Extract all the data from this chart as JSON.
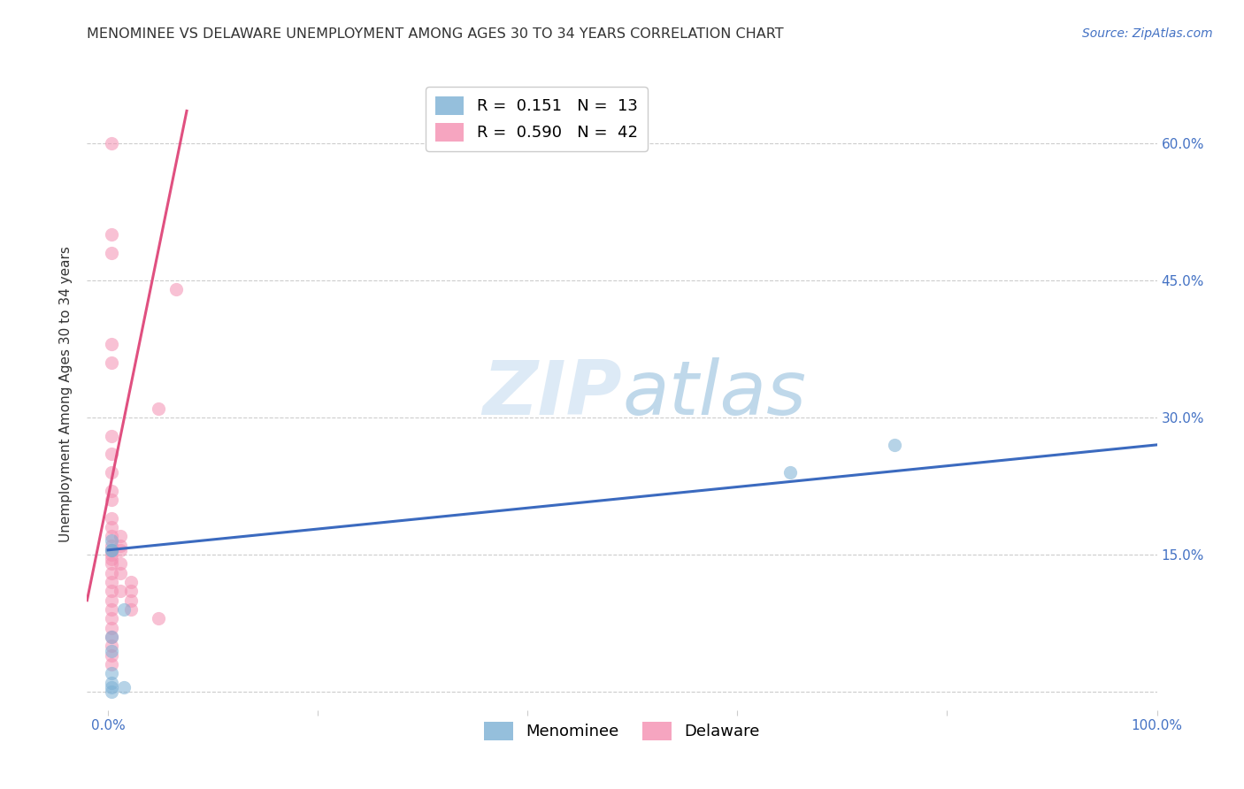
{
  "title": "MENOMINEE VS DELAWARE UNEMPLOYMENT AMONG AGES 30 TO 34 YEARS CORRELATION CHART",
  "source": "Source: ZipAtlas.com",
  "ylabel": "Unemployment Among Ages 30 to 34 years",
  "xlim": [
    -0.02,
    1.0
  ],
  "ylim": [
    -0.02,
    0.67
  ],
  "yticks_right": [
    0.0,
    0.15,
    0.3,
    0.45,
    0.6
  ],
  "yticklabels_right": [
    "",
    "15.0%",
    "30.0%",
    "45.0%",
    "60.0%"
  ],
  "xtick_positions": [
    0.0,
    0.2,
    0.4,
    0.6,
    0.8,
    1.0
  ],
  "xticklabels": [
    "0.0%",
    "",
    "",
    "",
    "",
    "100.0%"
  ],
  "watermark_part1": "ZIP",
  "watermark_part2": "atlas",
  "legend_entries": [
    {
      "label_r": "R = ",
      "label_rval": " 0.151",
      "label_n": "  N = ",
      "label_nval": " 13",
      "color": "#7bafd4"
    },
    {
      "label_r": "R = ",
      "label_rval": " 0.590",
      "label_n": "  N = ",
      "label_nval": " 42",
      "color": "#f48fb1"
    }
  ],
  "menominee_scatter_x": [
    0.003,
    0.003,
    0.003,
    0.003,
    0.003,
    0.003,
    0.003,
    0.003,
    0.003,
    0.015,
    0.015,
    0.65,
    0.75
  ],
  "menominee_scatter_y": [
    0.165,
    0.155,
    0.155,
    0.06,
    0.045,
    0.02,
    0.01,
    0.005,
    0.0,
    0.09,
    0.005,
    0.24,
    0.27
  ],
  "delaware_scatter_x": [
    0.003,
    0.003,
    0.003,
    0.003,
    0.003,
    0.003,
    0.003,
    0.003,
    0.003,
    0.003,
    0.003,
    0.003,
    0.003,
    0.003,
    0.003,
    0.003,
    0.003,
    0.003,
    0.003,
    0.003,
    0.003,
    0.003,
    0.003,
    0.003,
    0.003,
    0.003,
    0.003,
    0.003,
    0.003,
    0.012,
    0.012,
    0.012,
    0.012,
    0.012,
    0.012,
    0.022,
    0.022,
    0.022,
    0.022,
    0.048,
    0.048,
    0.065
  ],
  "delaware_scatter_y": [
    0.6,
    0.5,
    0.48,
    0.38,
    0.36,
    0.28,
    0.26,
    0.24,
    0.22,
    0.21,
    0.19,
    0.18,
    0.17,
    0.16,
    0.155,
    0.15,
    0.145,
    0.14,
    0.13,
    0.12,
    0.11,
    0.1,
    0.09,
    0.08,
    0.07,
    0.06,
    0.05,
    0.04,
    0.03,
    0.17,
    0.16,
    0.155,
    0.14,
    0.13,
    0.11,
    0.12,
    0.11,
    0.1,
    0.09,
    0.31,
    0.08,
    0.44
  ],
  "menominee_line_x": [
    0.0,
    1.0
  ],
  "menominee_line_y": [
    0.155,
    0.27
  ],
  "delaware_line_x": [
    -0.02,
    0.075
  ],
  "delaware_line_y": [
    0.1,
    0.635
  ],
  "scatter_color_menominee": "#7bafd4",
  "scatter_color_delaware": "#f48fb1",
  "line_color_menominee": "#3b6abf",
  "line_color_delaware": "#e05080",
  "scatter_alpha": 0.55,
  "scatter_size": 120,
  "background_color": "#ffffff",
  "grid_color": "#cccccc",
  "title_fontsize": 11.5,
  "label_fontsize": 11,
  "tick_fontsize": 11,
  "source_fontsize": 10,
  "legend_fontsize": 13
}
